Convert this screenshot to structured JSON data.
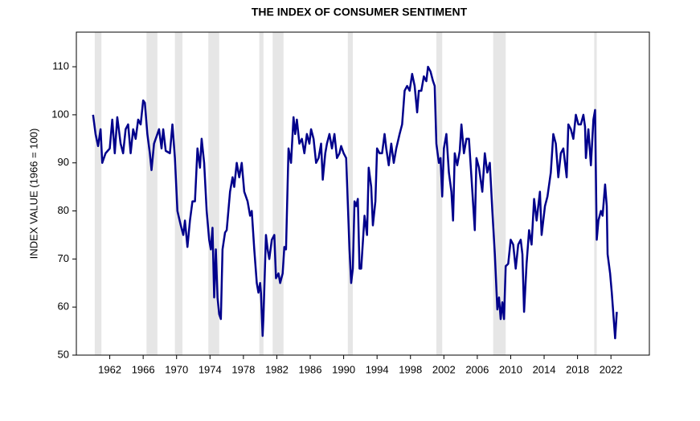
{
  "chart_data": {
    "type": "line",
    "title": "THE INDEX OF CONSUMER SENTIMENT",
    "y_label": "INDEX VALUE (1966 = 100)",
    "x": [
      1960.0,
      1960.3,
      1960.6,
      1960.9,
      1961.1,
      1961.5,
      1962.0,
      1962.3,
      1962.6,
      1962.9,
      1963.3,
      1963.6,
      1963.9,
      1964.2,
      1964.5,
      1964.8,
      1965.1,
      1965.4,
      1965.7,
      1966.0,
      1966.2,
      1966.5,
      1966.8,
      1967.0,
      1967.3,
      1967.7,
      1967.9,
      1968.2,
      1968.4,
      1968.7,
      1969.2,
      1969.5,
      1969.8,
      1970.1,
      1970.5,
      1970.8,
      1971.0,
      1971.3,
      1971.6,
      1971.9,
      1972.2,
      1972.5,
      1972.8,
      1973.0,
      1973.3,
      1973.6,
      1973.9,
      1974.1,
      1974.3,
      1974.5,
      1974.7,
      1974.9,
      1975.1,
      1975.3,
      1975.5,
      1975.8,
      1976.0,
      1976.4,
      1976.7,
      1976.9,
      1977.2,
      1977.5,
      1977.8,
      1978.1,
      1978.5,
      1978.8,
      1979.0,
      1979.3,
      1979.6,
      1979.8,
      1980.0,
      1980.1,
      1980.3,
      1980.4,
      1980.7,
      1980.9,
      1981.1,
      1981.4,
      1981.7,
      1981.9,
      1982.2,
      1982.4,
      1982.7,
      1982.9,
      1983.1,
      1983.4,
      1983.7,
      1984.0,
      1984.2,
      1984.4,
      1984.7,
      1985.0,
      1985.3,
      1985.6,
      1985.9,
      1986.1,
      1986.4,
      1986.7,
      1987.0,
      1987.3,
      1987.5,
      1987.8,
      1988.0,
      1988.3,
      1988.6,
      1988.9,
      1989.2,
      1989.5,
      1989.7,
      1990.0,
      1990.3,
      1990.7,
      1990.9,
      1991.1,
      1991.3,
      1991.5,
      1991.7,
      1991.9,
      1992.1,
      1992.5,
      1992.8,
      1993.0,
      1993.3,
      1993.5,
      1993.8,
      1994.0,
      1994.3,
      1994.6,
      1994.9,
      1995.1,
      1995.4,
      1995.7,
      1996.0,
      1996.3,
      1996.7,
      1997.0,
      1997.3,
      1997.6,
      1997.9,
      1998.2,
      1998.5,
      1998.8,
      1999.0,
      1999.3,
      1999.6,
      1999.9,
      2000.1,
      2000.4,
      2000.7,
      2000.9,
      2001.1,
      2001.4,
      2001.6,
      2001.8,
      2002.0,
      2002.3,
      2002.6,
      2002.9,
      2003.1,
      2003.3,
      2003.6,
      2003.9,
      2004.1,
      2004.4,
      2004.7,
      2005.0,
      2005.3,
      2005.7,
      2005.9,
      2006.2,
      2006.6,
      2006.9,
      2007.2,
      2007.5,
      2007.8,
      2008.1,
      2008.4,
      2008.6,
      2008.8,
      2009.0,
      2009.2,
      2009.4,
      2009.7,
      2010.0,
      2010.3,
      2010.6,
      2010.9,
      2011.2,
      2011.4,
      2011.6,
      2011.9,
      2012.2,
      2012.5,
      2012.8,
      2013.1,
      2013.5,
      2013.7,
      2014.1,
      2014.4,
      2014.8,
      2015.1,
      2015.4,
      2015.7,
      2016.0,
      2016.3,
      2016.7,
      2016.9,
      2017.2,
      2017.5,
      2017.8,
      2018.1,
      2018.4,
      2018.7,
      2018.9,
      2019.0,
      2019.3,
      2019.6,
      2019.9,
      2020.1,
      2020.3,
      2020.5,
      2020.8,
      2021.0,
      2021.3,
      2021.5,
      2021.6,
      2021.9,
      2022.1,
      2022.5,
      2022.7
    ],
    "values": [
      100,
      96,
      93.5,
      97,
      90,
      92,
      93,
      99,
      92,
      99.5,
      94,
      92,
      97,
      98,
      92,
      97,
      95,
      99,
      98,
      103,
      102.5,
      96,
      92,
      88.5,
      94,
      96,
      97,
      93,
      97,
      92.5,
      92,
      98,
      91,
      80,
      77,
      75,
      78,
      72.5,
      78,
      82,
      82,
      93,
      89,
      95,
      90,
      80,
      74,
      72,
      76.5,
      62,
      72,
      62,
      58.5,
      57.5,
      72,
      75.5,
      76,
      84,
      87,
      85,
      90,
      87,
      90,
      84,
      82,
      79,
      80,
      72,
      65,
      63,
      65,
      63,
      54,
      58,
      75,
      72,
      70,
      74,
      75,
      66,
      67,
      65,
      67,
      72.5,
      72,
      93,
      90,
      99.5,
      96,
      99,
      94,
      95,
      92,
      96,
      94,
      97,
      95,
      90,
      91,
      94,
      86.5,
      92,
      94,
      96,
      93,
      96,
      91,
      92,
      93.5,
      92,
      91,
      72,
      65,
      68,
      82,
      81,
      82.5,
      68,
      68,
      79,
      75,
      89,
      85,
      77,
      82,
      93,
      92,
      92,
      96,
      93,
      89.5,
      94,
      90,
      93,
      96,
      98,
      105,
      106,
      105,
      108.5,
      106,
      100.5,
      105,
      105,
      108,
      107,
      110,
      109,
      107,
      106,
      94,
      90,
      91,
      83,
      93,
      96,
      88,
      84,
      78,
      92,
      89.5,
      92.5,
      98,
      92,
      95,
      95,
      87,
      76,
      91,
      89,
      84,
      92,
      88,
      90,
      80,
      71,
      59.5,
      62,
      57.5,
      61,
      57.5,
      68.5,
      69,
      74,
      73,
      68,
      73,
      74,
      71,
      59,
      69,
      76,
      73,
      82.5,
      78,
      84,
      75,
      81,
      83,
      88,
      96,
      94,
      87,
      92,
      93,
      87,
      98,
      97,
      95,
      100,
      98,
      98,
      100,
      97.5,
      91,
      97,
      89.5,
      99,
      101,
      74,
      78,
      80,
      79,
      85.5,
      81,
      71,
      67,
      63,
      53.5,
      59
    ],
    "color": "#00008b",
    "shaded_ranges": [
      [
        1960.2,
        1961.0
      ],
      [
        1966.4,
        1967.7
      ],
      [
        1969.8,
        1970.7
      ],
      [
        1973.8,
        1975.1
      ],
      [
        1979.9,
        1980.4
      ],
      [
        1981.5,
        1982.8
      ],
      [
        1990.5,
        1991.1
      ],
      [
        2001.1,
        2001.8
      ],
      [
        2007.9,
        2009.4
      ],
      [
        2020.0,
        2020.3
      ]
    ],
    "shade_color": "#e6e6e6",
    "xlim": [
      1958,
      2026.6
    ],
    "xticks": [
      1962,
      1966,
      1970,
      1974,
      1978,
      1982,
      1986,
      1990,
      1994,
      1998,
      2002,
      2006,
      2010,
      2014,
      2018,
      2022
    ],
    "ylim": [
      50,
      117.2
    ],
    "yticks": [
      50,
      60,
      70,
      80,
      90,
      100,
      110
    ]
  }
}
